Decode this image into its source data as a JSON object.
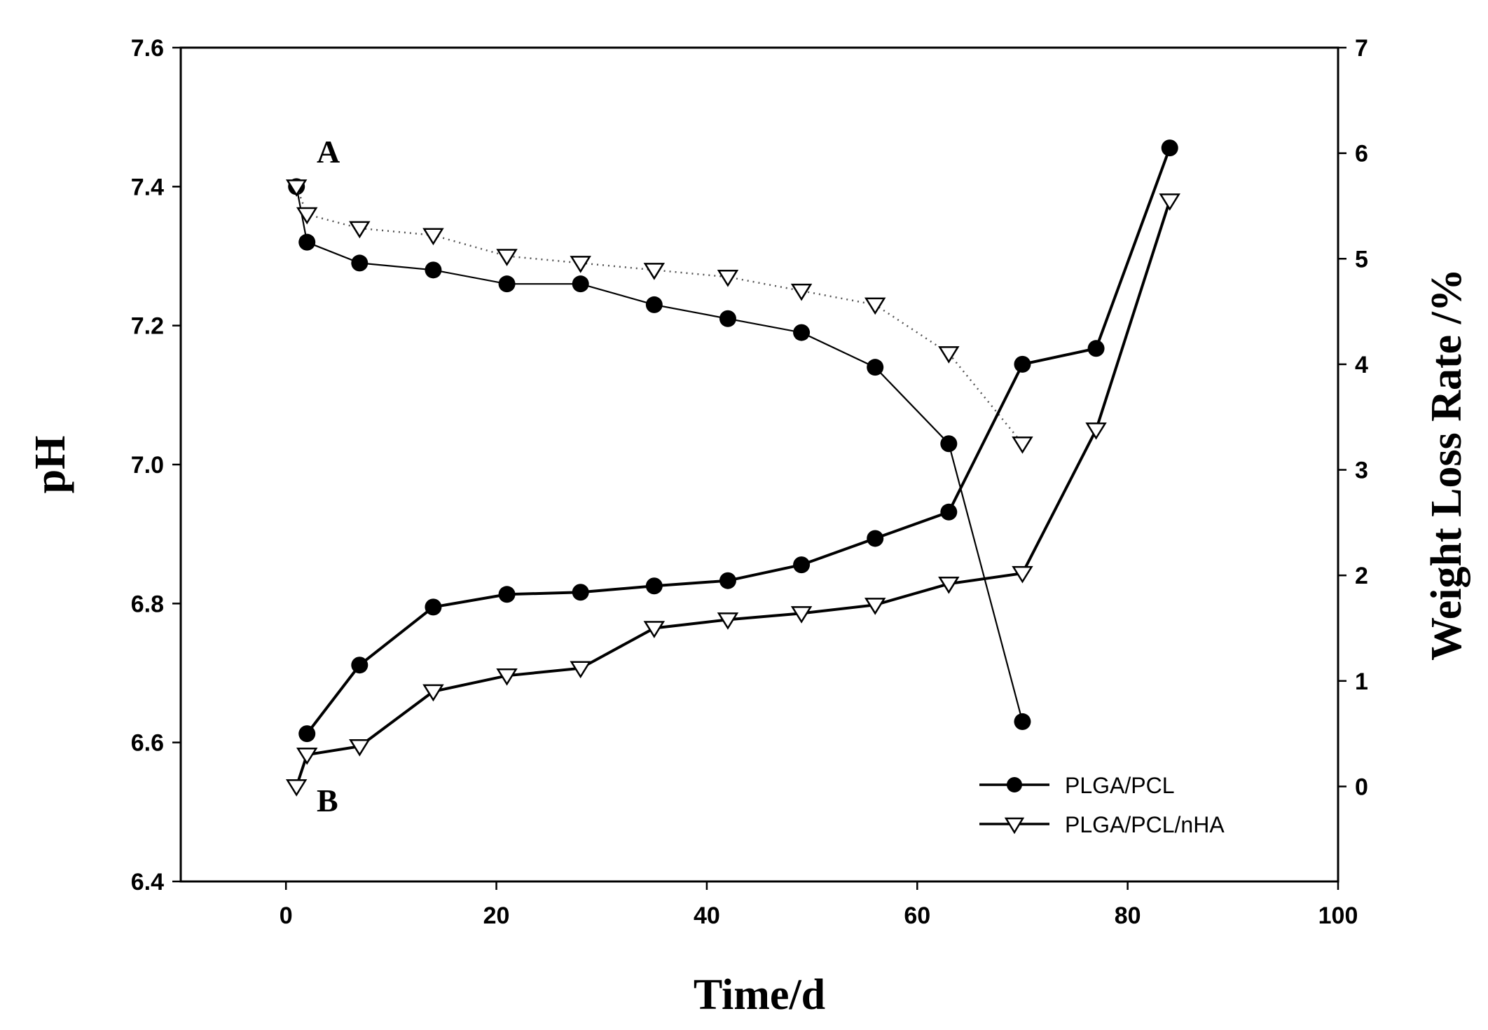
{
  "chart_data": {
    "type": "line",
    "x_axis": {
      "label": "Time/d",
      "range": [
        -10,
        100
      ],
      "ticks": [
        0,
        20,
        40,
        60,
        80,
        100
      ]
    },
    "y_axis_left": {
      "label": "pH",
      "range": [
        6.4,
        7.6
      ],
      "ticks": [
        "6.4",
        "6.6",
        "6.8",
        "7.0",
        "7.2",
        "7.4",
        "7.6"
      ]
    },
    "y_axis_right": {
      "label": "Weight Loss Rate /%",
      "range": [
        -0.9,
        7
      ],
      "ticks": [
        "0",
        "1",
        "2",
        "3",
        "4",
        "5",
        "6",
        "7"
      ]
    },
    "annotations": [
      "A",
      "B"
    ],
    "legend": {
      "position": "bottom-right",
      "entries": [
        "PLGA/PCL",
        "PLGA/PCL/nHA"
      ]
    },
    "series": [
      {
        "name": "PLGA/PCL",
        "group": "A",
        "axis": "left",
        "marker": "filled-circle",
        "line": "thin-solid",
        "x": [
          1,
          2,
          7,
          14,
          21,
          28,
          35,
          42,
          49,
          56,
          63,
          70
        ],
        "y": [
          7.4,
          7.32,
          7.29,
          7.28,
          7.26,
          7.26,
          7.23,
          7.21,
          7.19,
          7.14,
          7.03,
          6.63
        ]
      },
      {
        "name": "PLGA/PCL/nHA",
        "group": "A",
        "axis": "left",
        "marker": "open-down-triangle",
        "line": "dotted",
        "x": [
          1,
          2,
          7,
          14,
          21,
          28,
          35,
          42,
          49,
          56,
          63,
          70
        ],
        "y": [
          7.4,
          7.36,
          7.34,
          7.33,
          7.3,
          7.29,
          7.28,
          7.27,
          7.25,
          7.23,
          7.16,
          7.03
        ]
      },
      {
        "name": "PLGA/PCL",
        "group": "B",
        "axis": "right",
        "marker": "filled-circle",
        "line": "thick-solid",
        "x": [
          2,
          7,
          14,
          21,
          28,
          35,
          42,
          49,
          56,
          63,
          70,
          77,
          84
        ],
        "y": [
          0.5,
          1.15,
          1.7,
          1.82,
          1.84,
          1.9,
          1.95,
          2.1,
          2.35,
          2.6,
          4.0,
          4.15,
          6.05
        ]
      },
      {
        "name": "PLGA/PCL/nHA",
        "group": "B",
        "axis": "right",
        "marker": "open-down-triangle",
        "line": "thick-solid",
        "x": [
          1,
          2,
          7,
          14,
          21,
          28,
          35,
          42,
          49,
          56,
          63,
          70,
          77,
          84
        ],
        "y": [
          0,
          0.3,
          0.38,
          0.9,
          1.05,
          1.12,
          1.5,
          1.58,
          1.64,
          1.72,
          1.92,
          2.02,
          3.38,
          5.55
        ]
      }
    ]
  }
}
